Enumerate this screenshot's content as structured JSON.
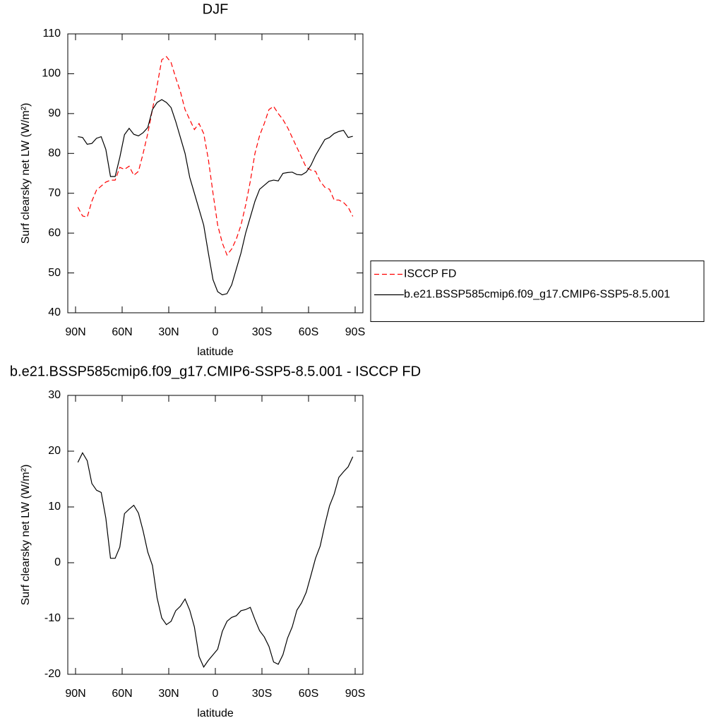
{
  "chart_data": [
    {
      "type": "line",
      "title": "DJF",
      "xlabel": "latitude",
      "ylabel": "Surf clearsky net LW (W/m²)",
      "x": [
        88.5,
        85.5,
        82.5,
        79.5,
        76.5,
        73.5,
        70.5,
        67.5,
        64.5,
        61.5,
        58.5,
        55.5,
        52.5,
        49.5,
        46.5,
        43.5,
        40.5,
        37.5,
        34.5,
        31.5,
        28.5,
        25.5,
        22.5,
        19.5,
        16.5,
        13.5,
        10.5,
        7.5,
        4.5,
        1.5,
        -1.5,
        -4.5,
        -7.5,
        -10.5,
        -13.5,
        -16.5,
        -19.5,
        -22.5,
        -25.5,
        -28.5,
        -31.5,
        -34.5,
        -37.5,
        -40.5,
        -43.5,
        -46.5,
        -49.5,
        -52.5,
        -55.5,
        -58.5,
        -61.5,
        -64.5,
        -67.5,
        -70.5,
        -73.5,
        -76.5,
        -79.5,
        -82.5,
        -85.5,
        -88.5
      ],
      "series": [
        {
          "name": "ISCCP FD",
          "color": "#ff0000",
          "style": "dashed",
          "values": [
            66.5,
            64.3,
            64,
            68,
            70.8,
            71.8,
            72.8,
            73.3,
            73.3,
            76.5,
            76,
            76.8,
            74.5,
            75.5,
            80,
            85,
            91,
            97,
            103.5,
            104.3,
            102.8,
            99,
            95.5,
            91,
            88.5,
            86,
            87.5,
            85,
            78.5,
            70,
            62,
            57.5,
            54.5,
            56,
            58.5,
            62,
            67,
            73,
            80,
            84.5,
            87.5,
            91,
            91.8,
            90,
            88.5,
            86.5,
            84,
            81.5,
            79,
            76.5,
            75.8,
            75.5,
            73,
            71.5,
            71,
            68.3,
            68.3,
            67.7,
            66.5,
            64.2
          ]
        },
        {
          "name": "b.e21.BSSP585cmip6.f09_g17.CMIP6-SSP5-8.5.001",
          "color": "#000000",
          "style": "solid",
          "values": [
            84.2,
            84,
            82.3,
            82.5,
            83.8,
            84.2,
            81,
            74.2,
            74.2,
            79,
            84.7,
            86.3,
            84.8,
            84.4,
            85.2,
            86.5,
            91,
            92.8,
            93.5,
            92.8,
            91.5,
            88,
            84,
            80,
            74,
            70,
            66,
            62,
            55,
            48.3,
            45.3,
            44.5,
            44.8,
            47,
            51,
            55,
            60,
            64,
            68,
            71,
            72,
            73,
            73.3,
            73.1,
            75,
            75.2,
            75.3,
            74.7,
            74.6,
            75.3,
            77,
            79.5,
            81.5,
            83.5,
            84,
            85,
            85.5,
            85.8,
            84,
            84.3
          ]
        }
      ],
      "xlim": [
        95,
        -95
      ],
      "xticks": [
        {
          "value": 90,
          "label": "90N"
        },
        {
          "value": 60,
          "label": "60N"
        },
        {
          "value": 30,
          "label": "30N"
        },
        0,
        {
          "value": -30,
          "label": "30S"
        },
        {
          "value": -60,
          "label": "60S"
        },
        {
          "value": -90,
          "label": "90S"
        }
      ],
      "ylim": [
        40,
        110
      ],
      "yticks": [
        40,
        50,
        60,
        70,
        80,
        90,
        100,
        110
      ],
      "legend": "right"
    },
    {
      "type": "line",
      "title": "b.e21.BSSP585cmip6.f09_g17.CMIP6-SSP5-8.5.001 - ISCCP FD",
      "xlabel": "latitude",
      "ylabel": "Surf clearsky net LW (W/m²)",
      "x": [
        88.5,
        85.5,
        82.5,
        79.5,
        76.5,
        73.5,
        70.5,
        67.5,
        64.5,
        61.5,
        58.5,
        55.5,
        52.5,
        49.5,
        46.5,
        43.5,
        40.5,
        37.5,
        34.5,
        31.5,
        28.5,
        25.5,
        22.5,
        19.5,
        16.5,
        13.5,
        10.5,
        7.5,
        4.5,
        1.5,
        -1.5,
        -4.5,
        -7.5,
        -10.5,
        -13.5,
        -16.5,
        -19.5,
        -22.5,
        -25.5,
        -28.5,
        -31.5,
        -34.5,
        -37.5,
        -40.5,
        -43.5,
        -46.5,
        -49.5,
        -52.5,
        -55.5,
        -58.5,
        -61.5,
        -64.5,
        -67.5,
        -70.5,
        -73.5,
        -76.5,
        -79.5,
        -82.5,
        -85.5,
        -88.5
      ],
      "color": "#000000",
      "values": [
        18,
        19.7,
        18.3,
        14.2,
        13,
        12.6,
        8,
        0.8,
        0.8,
        2.8,
        8.8,
        9.6,
        10.3,
        8.9,
        5.7,
        1.9,
        -0.5,
        -6.3,
        -9.9,
        -11.1,
        -10.5,
        -8.6,
        -7.8,
        -6.5,
        -8.5,
        -11.5,
        -16.8,
        -18.7,
        -17.5,
        -16.5,
        -15.5,
        -12.3,
        -10.5,
        -9.8,
        -9.5,
        -8.6,
        -8.4,
        -8,
        -10.2,
        -12.2,
        -13.3,
        -15,
        -17.8,
        -18.2,
        -16.5,
        -13.5,
        -11.5,
        -8.5,
        -7.2,
        -5.3,
        -2.3,
        0.8,
        3,
        6.8,
        10.2,
        12.3,
        15.3,
        16.3,
        17.2,
        19
      ],
      "xlim": [
        95,
        -95
      ],
      "xticks": [
        {
          "value": 90,
          "label": "90N"
        },
        {
          "value": 60,
          "label": "60N"
        },
        {
          "value": 30,
          "label": "30N"
        },
        0,
        {
          "value": -30,
          "label": "30S"
        },
        {
          "value": -60,
          "label": "60S"
        },
        {
          "value": -90,
          "label": "90S"
        }
      ],
      "ylim": [
        -20,
        30
      ],
      "yticks": [
        -20,
        -10,
        0,
        10,
        20,
        30
      ]
    }
  ]
}
